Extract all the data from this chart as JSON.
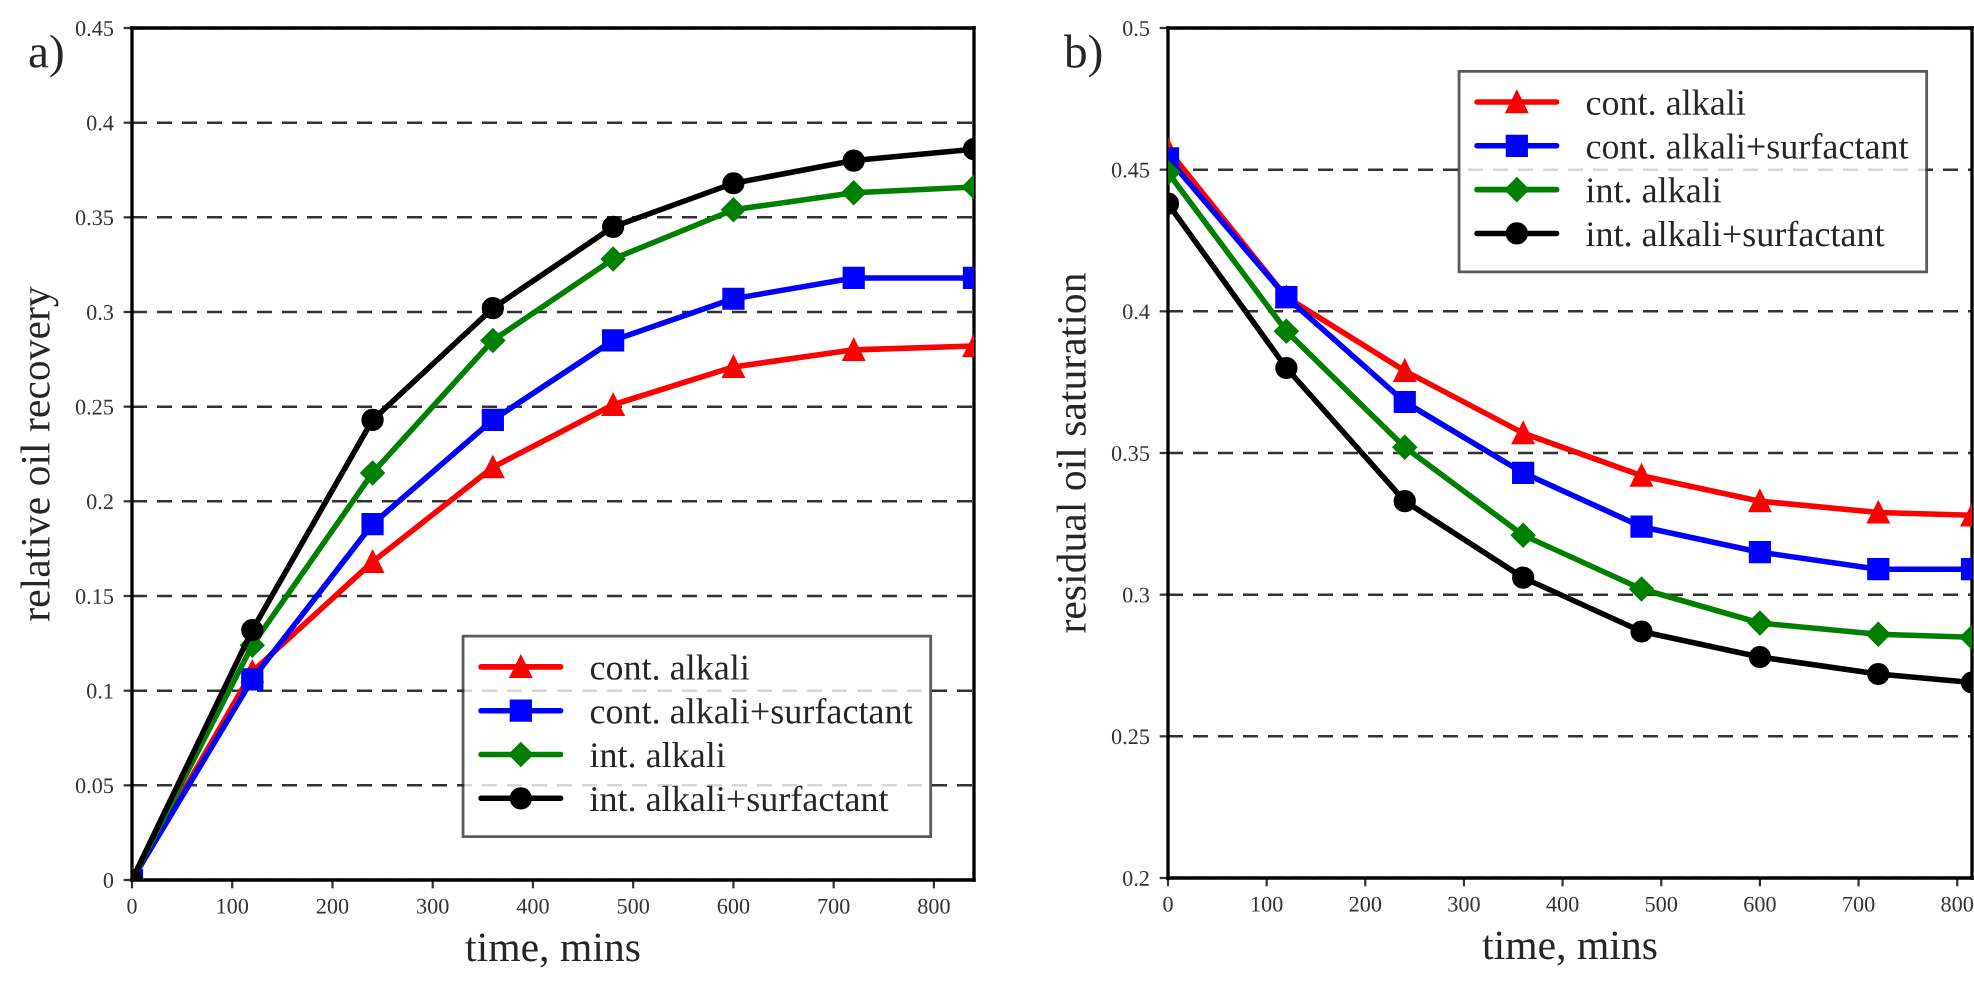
{
  "chart_data": [
    {
      "type": "line",
      "title": "a)",
      "xlabel": "time, mins",
      "ylabel": "relative oil recovery",
      "x": [
        0,
        120,
        240,
        360,
        480,
        600,
        720,
        840
      ],
      "series": [
        {
          "name": "cont. alkali",
          "color": "#ff0000",
          "marker": "triangle",
          "values": [
            0,
            0.11,
            0.168,
            0.218,
            0.251,
            0.271,
            0.28,
            0.282
          ]
        },
        {
          "name": "cont. alkali+surfactant",
          "color": "#0000ff",
          "marker": "square",
          "values": [
            0,
            0.106,
            0.188,
            0.243,
            0.285,
            0.307,
            0.318,
            0.318
          ]
        },
        {
          "name": "int. alkali",
          "color": "#008000",
          "marker": "diamond",
          "values": [
            0,
            0.124,
            0.215,
            0.285,
            0.328,
            0.354,
            0.363,
            0.366
          ]
        },
        {
          "name": "int. alkali+surfactant",
          "color": "#000000",
          "marker": "circle",
          "values": [
            0,
            0.132,
            0.243,
            0.302,
            0.345,
            0.368,
            0.38,
            0.386
          ]
        }
      ],
      "xlim": [
        0,
        840
      ],
      "xticks": [
        0,
        100,
        200,
        300,
        400,
        500,
        600,
        700,
        800
      ],
      "ylim": [
        0,
        0.45
      ],
      "yticks": [
        0,
        0.05,
        0.1,
        0.15,
        0.2,
        0.25,
        0.3,
        0.35,
        0.4,
        0.45
      ],
      "grid": "y",
      "legend": "bottom right"
    },
    {
      "type": "line",
      "title": "b)",
      "xlabel": "time, mins",
      "ylabel": "residual oil saturation",
      "x": [
        0,
        120,
        240,
        360,
        480,
        600,
        720,
        815
      ],
      "series": [
        {
          "name": "cont. alkali",
          "color": "#ff0000",
          "marker": "triangle",
          "values": [
            0.457,
            0.405,
            0.379,
            0.357,
            0.342,
            0.333,
            0.329,
            0.328
          ]
        },
        {
          "name": "cont. alkali+surfactant",
          "color": "#0000ff",
          "marker": "square",
          "values": [
            0.454,
            0.405,
            0.368,
            0.343,
            0.324,
            0.315,
            0.309,
            0.309
          ]
        },
        {
          "name": "int. alkali",
          "color": "#008000",
          "marker": "diamond",
          "values": [
            0.449,
            0.393,
            0.352,
            0.321,
            0.302,
            0.29,
            0.286,
            0.285
          ]
        },
        {
          "name": "int. alkali+surfactant",
          "color": "#000000",
          "marker": "circle",
          "values": [
            0.438,
            0.38,
            0.333,
            0.306,
            0.287,
            0.278,
            0.272,
            0.269
          ]
        }
      ],
      "xlim": [
        0,
        815
      ],
      "xticks": [
        0,
        100,
        200,
        300,
        400,
        500,
        600,
        700,
        800
      ],
      "ylim": [
        0.2,
        0.5
      ],
      "yticks": [
        0.2,
        0.25,
        0.3,
        0.35,
        0.4,
        0.45,
        0.5
      ],
      "grid": "y",
      "legend": "top right"
    }
  ]
}
